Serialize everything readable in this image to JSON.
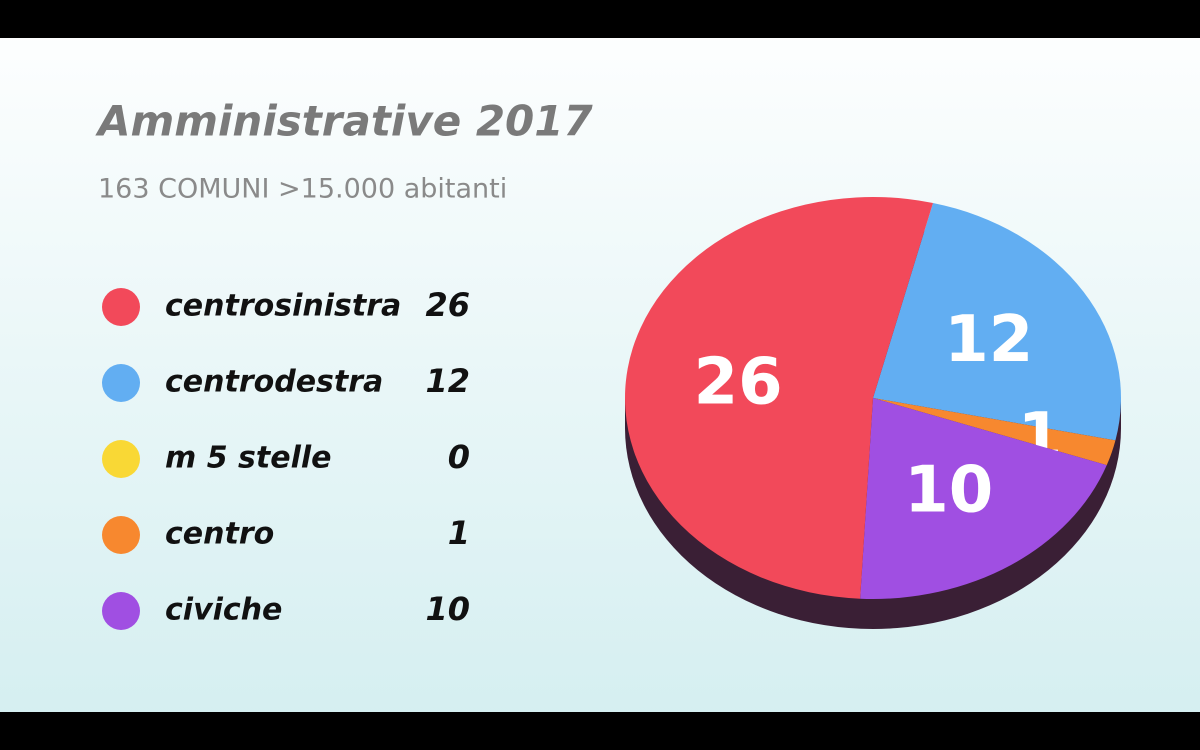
{
  "chart_data": {
    "type": "pie",
    "title": "Amministrative 2017",
    "subtitle": "163 COMUNI >15.000 abitanti",
    "categories": [
      "centrosinistra",
      "centrodestra",
      "m 5 stelle",
      "centro",
      "civiche"
    ],
    "values": [
      26,
      12,
      0,
      1,
      10
    ],
    "colors": [
      "#f2495a",
      "#62aef2",
      "#f9d835",
      "#f7882f",
      "#a04fe2"
    ]
  }
}
